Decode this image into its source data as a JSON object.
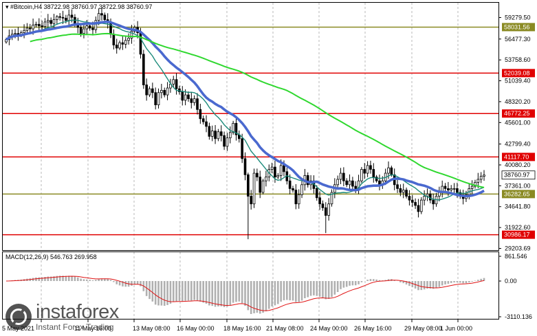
{
  "header": {
    "symbol": "#Bitcoin,H4",
    "open": "38722.98",
    "high": "38760.97",
    "low": "38722.98",
    "close": "38760.97"
  },
  "watermark": {
    "brand": "instaforex",
    "tagline": "Instant Forex Trading"
  },
  "colors": {
    "candle": "#000000",
    "ma_blue": "#4a69cf",
    "ma_teal": "#1b8a7a",
    "ma_green": "#2fd82f",
    "level_red": "#e00000",
    "level_olive": "#8a8a22",
    "signal_line": "#e01010",
    "histogram": "#b0b0b0"
  },
  "chart_data": [
    {
      "type": "candlestick",
      "title": "#Bitcoin,H4",
      "ohlc": {
        "open": 38722.98,
        "high": 38760.97,
        "low": 38722.98,
        "close": 38760.97
      },
      "ylim": [
        29203.69,
        60000
      ],
      "y_ticks": [
        59279.5,
        56477.3,
        53758.6,
        51039.4,
        48320.2,
        45601.0,
        42799.4,
        40080.2,
        37361.0,
        34641.8,
        31922.6,
        29203.69
      ],
      "x_ticks": [
        "5 May 2021",
        "11 May 16:00",
        "13 May 08:00",
        "16 May 00:00",
        "18 May 16:00",
        "21 May 08:00",
        "24 May 00:00",
        "26 May 16:00",
        "29 May 08:00",
        "1 Jun 00:00"
      ],
      "closes": [
        56400,
        56900,
        57100,
        57200,
        57000,
        57300,
        57600,
        57900,
        57800,
        58300,
        58400,
        58200,
        58100,
        58700,
        58900,
        58500,
        59000,
        59400,
        59300,
        59200,
        58900,
        59600,
        59300,
        58400,
        58000,
        57200,
        57800,
        58200,
        57900,
        57700,
        58900,
        59800,
        59600,
        59000,
        58600,
        57100,
        55700,
        55300,
        56000,
        55800,
        56300,
        56600,
        57500,
        58000,
        57300,
        54500,
        50500,
        49200,
        50000,
        49500,
        47900,
        49500,
        49800,
        49200,
        50100,
        50600,
        51200,
        50000,
        49600,
        48500,
        49200,
        48700,
        48200,
        48700,
        47300,
        46100,
        45700,
        45100,
        43800,
        44500,
        43500,
        44400,
        43900,
        42500,
        43600,
        44300,
        45500,
        44000,
        43500,
        40900,
        38800,
        36000,
        35000,
        39000,
        38500,
        36500,
        38000,
        38500,
        39500,
        39800,
        38500,
        38700,
        40000,
        39200,
        38000,
        37000,
        36800,
        35000,
        36200,
        37500,
        38700,
        37500,
        38000,
        37000,
        35800,
        35000,
        34500,
        33500,
        35000,
        36500,
        37500,
        38200,
        39000,
        38000,
        37500,
        38000,
        37300,
        37000,
        38000,
        39500,
        39000,
        40000,
        39500,
        38500,
        38000,
        37500,
        38000,
        39000,
        39700,
        38800,
        37500,
        37000,
        36500,
        36800,
        36000,
        35500,
        35200,
        34800,
        34000,
        35500,
        36000,
        36300,
        35500,
        35000,
        36000,
        36500,
        37300,
        37000,
        36800,
        37000,
        37000,
        36500,
        36000,
        35700,
        36200,
        37000,
        37300,
        37800,
        38200,
        38600,
        38760.97
      ],
      "series": [
        {
          "name": "",
          "style": "moving-average-fast",
          "color": "#1b8a7a"
        },
        {
          "name": "",
          "style": "moving-average-mid",
          "color": "#4a69cf"
        },
        {
          "name": "",
          "style": "moving-average-slow",
          "color": "#2fd82f"
        }
      ],
      "levels": [
        {
          "label": "58031.56",
          "value": 58031.56,
          "color": "#8a8a22"
        },
        {
          "label": "52039.08",
          "value": 52039.08,
          "color": "#e00000"
        },
        {
          "label": "46772.25",
          "value": 46772.25,
          "color": "#e00000"
        },
        {
          "label": "41117.70",
          "value": 41117.7,
          "color": "#e00000"
        },
        {
          "label": "36282.65",
          "value": 36282.65,
          "color": "#8a8a22"
        },
        {
          "label": "30986.17",
          "value": 30986.17,
          "color": "#e00000"
        }
      ],
      "current_price": {
        "label": "38760.97",
        "value": 38760.97
      }
    },
    {
      "type": "macd",
      "title": "MACD(12,26,9) 546.763 269.958",
      "params": "12,26,9",
      "macd": 546.763,
      "signal": 269.958,
      "y_ticks": [
        "861.546",
        "0.00",
        "-3110.136"
      ],
      "ylim": [
        -3110.136,
        861.546
      ]
    }
  ]
}
